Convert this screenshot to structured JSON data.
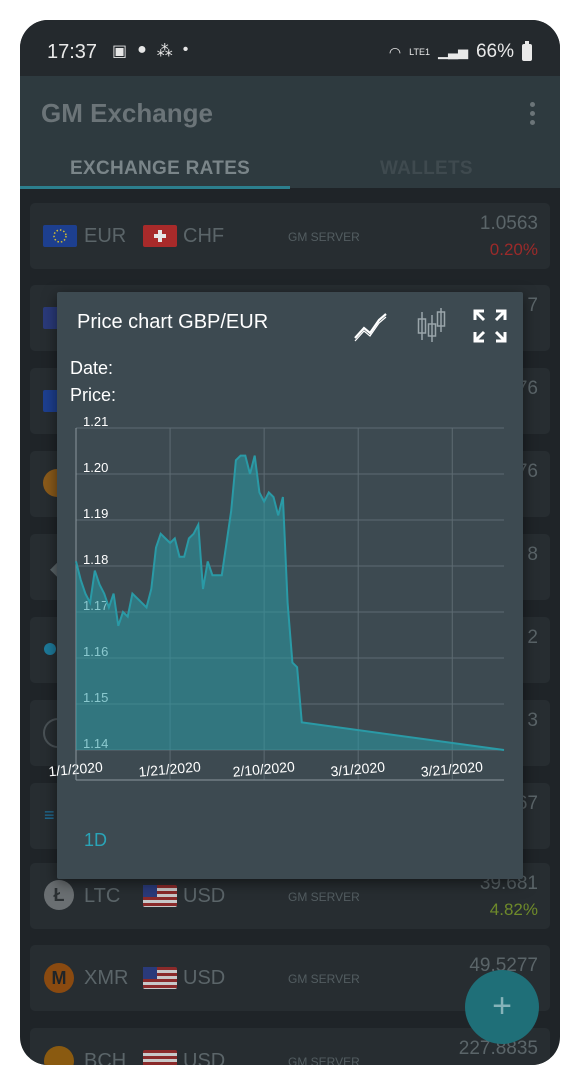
{
  "status": {
    "time": "17:37",
    "battery": "66%",
    "network": "LTE1"
  },
  "appbar": {
    "title": "GM Exchange"
  },
  "tabs": [
    {
      "label": "EXCHANGE RATES"
    },
    {
      "label": "WALLETS"
    }
  ],
  "rows": [
    {
      "base": "EUR",
      "quote": "CHF",
      "server": "GM SERVER",
      "value": "1.0563",
      "change": "0.20%",
      "change_color": "#9b2a2a"
    },
    {
      "base": "LTC",
      "quote": "USD",
      "server": "GM SERVER",
      "value": "39.681",
      "change": "4.82%",
      "change_color": "#6e8a2a"
    },
    {
      "base": "XMR",
      "quote": "USD",
      "server": "GM SERVER",
      "value": "49.5277",
      "change": "",
      "change_color": "#6e8a2a"
    },
    {
      "base": "BCH",
      "quote": "USD",
      "server": "GM SERVER",
      "value": "227.8835",
      "change": "",
      "change_color": "#6e8a2a"
    }
  ],
  "partial_values": [
    "7",
    "76",
    "76",
    "8",
    "2",
    "3",
    "67"
  ],
  "dialog": {
    "title": "Price chart GBP/EUR",
    "date_label": "Date:",
    "price_label": "Price:",
    "range_label": "1D",
    "icons": [
      "line-chart-icon",
      "candlestick-icon",
      "fullscreen-icon"
    ]
  },
  "chart_data": {
    "type": "area",
    "title": "Price chart GBP/EUR",
    "xlabel": "",
    "ylabel": "",
    "ylim": [
      1.14,
      1.21
    ],
    "yticks": [
      1.14,
      1.15,
      1.16,
      1.17,
      1.18,
      1.19,
      1.2,
      1.21
    ],
    "xtick_labels": [
      "1/1/2020",
      "1/21/2020",
      "2/10/2020",
      "3/1/2020",
      "3/21/2020"
    ],
    "xlim": [
      "2020-01-01",
      "2020-04-01"
    ],
    "grid": true,
    "color": "#2a9aa6",
    "points": [
      [
        "2020-01-01",
        1.181
      ],
      [
        "2020-01-02",
        1.177
      ],
      [
        "2020-01-03",
        1.174
      ],
      [
        "2020-01-04",
        1.172
      ],
      [
        "2020-01-05",
        1.179
      ],
      [
        "2020-01-06",
        1.176
      ],
      [
        "2020-01-07",
        1.174
      ],
      [
        "2020-01-08",
        1.171
      ],
      [
        "2020-01-09",
        1.174
      ],
      [
        "2020-01-10",
        1.167
      ],
      [
        "2020-01-11",
        1.17
      ],
      [
        "2020-01-12",
        1.169
      ],
      [
        "2020-01-13",
        1.174
      ],
      [
        "2020-01-14",
        1.173
      ],
      [
        "2020-01-15",
        1.172
      ],
      [
        "2020-01-16",
        1.171
      ],
      [
        "2020-01-17",
        1.175
      ],
      [
        "2020-01-18",
        1.184
      ],
      [
        "2020-01-19",
        1.187
      ],
      [
        "2020-01-20",
        1.186
      ],
      [
        "2020-01-21",
        1.185
      ],
      [
        "2020-01-22",
        1.186
      ],
      [
        "2020-01-23",
        1.182
      ],
      [
        "2020-01-24",
        1.182
      ],
      [
        "2020-01-25",
        1.186
      ],
      [
        "2020-01-26",
        1.187
      ],
      [
        "2020-01-27",
        1.189
      ],
      [
        "2020-01-28",
        1.175
      ],
      [
        "2020-01-29",
        1.181
      ],
      [
        "2020-01-30",
        1.178
      ],
      [
        "2020-01-31",
        1.178
      ],
      [
        "2020-02-01",
        1.178
      ],
      [
        "2020-02-02",
        1.185
      ],
      [
        "2020-02-03",
        1.192
      ],
      [
        "2020-02-04",
        1.203
      ],
      [
        "2020-02-05",
        1.204
      ],
      [
        "2020-02-06",
        1.204
      ],
      [
        "2020-02-07",
        1.2
      ],
      [
        "2020-02-08",
        1.204
      ],
      [
        "2020-02-09",
        1.196
      ],
      [
        "2020-02-10",
        1.194
      ],
      [
        "2020-02-11",
        1.196
      ],
      [
        "2020-02-12",
        1.195
      ],
      [
        "2020-02-13",
        1.191
      ],
      [
        "2020-02-14",
        1.195
      ],
      [
        "2020-02-15",
        1.172
      ],
      [
        "2020-02-16",
        1.159
      ],
      [
        "2020-02-17",
        1.158
      ],
      [
        "2020-02-18",
        1.146
      ],
      [
        "2020-04-01",
        1.14
      ]
    ]
  },
  "colors": {
    "accent": "#2a9aa6",
    "background": "#1f2428",
    "dialog": "#3d4a51",
    "up": "#6e8a2a",
    "down": "#9b2a2a"
  }
}
